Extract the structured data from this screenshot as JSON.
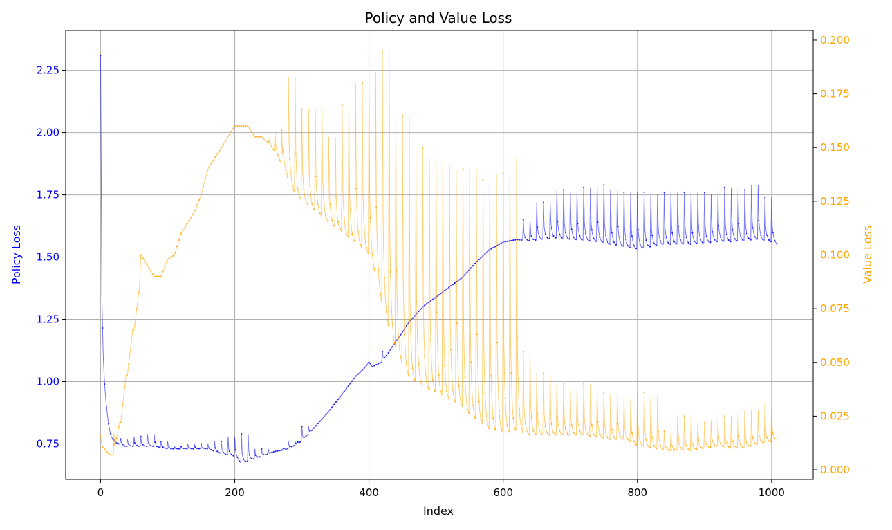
{
  "chart_data": {
    "type": "line",
    "title": "Policy and Value Loss",
    "xlabel": "Index",
    "ylabel_left": "Policy Loss",
    "ylabel_right": "Value Loss",
    "xlim": [
      -52,
      1062
    ],
    "ylim_left": [
      0.607,
      2.41
    ],
    "ylim_right": [
      -0.0045,
      0.2045
    ],
    "xticks": [
      0,
      200,
      400,
      600,
      800,
      1000
    ],
    "yticks_left": [
      0.75,
      1.0,
      1.25,
      1.5,
      1.75,
      2.0,
      2.25
    ],
    "yticks_left_labels": [
      "0.75",
      "1.00",
      "1.25",
      "1.50",
      "1.75",
      "2.00",
      "2.25"
    ],
    "yticks_right": [
      0.0,
      0.025,
      0.05,
      0.075,
      0.1,
      0.125,
      0.15,
      0.175,
      0.2
    ],
    "yticks_right_labels": [
      "0.000",
      "0.025",
      "0.050",
      "0.075",
      "0.100",
      "0.125",
      "0.150",
      "0.175",
      "0.200"
    ],
    "grid": true,
    "colors": {
      "policy": "#0000ff",
      "value": "#ffa500",
      "grid": "#b0b0b0",
      "axis": "#000000"
    },
    "series": [
      {
        "name": "Policy Loss",
        "axis": "left",
        "color": "#0000ff",
        "x": [
          0,
          2,
          4,
          6,
          8,
          10,
          12,
          14,
          16,
          18,
          20,
          25,
          30,
          35,
          40,
          50,
          60,
          70,
          80,
          90,
          100,
          120,
          140,
          160,
          180,
          200,
          210,
          220,
          230,
          240,
          250,
          260,
          280,
          300,
          320,
          340,
          360,
          380,
          395,
          400,
          405,
          420,
          440,
          460,
          480,
          500,
          520,
          540,
          560,
          580,
          600,
          620,
          640,
          660,
          680,
          700,
          720,
          740,
          760,
          780,
          800,
          820,
          840,
          860,
          880,
          900,
          920,
          940,
          960,
          980,
          1000,
          1008
        ],
        "peaks": [
          0.77,
          0.78,
          0.79,
          0.76,
          0.74,
          0.75,
          0.75,
          0.76,
          0.78,
          0.79,
          0.73,
          0.72,
          0.76,
          0.82,
          0.79,
          0.8,
          0.83,
          0.92,
          1.02,
          1.12,
          1.17,
          1.22,
          1.26,
          1.25,
          1.26,
          1.24,
          1.36,
          1.45,
          1.55,
          1.65,
          1.72,
          1.77,
          1.76,
          1.78,
          1.79,
          1.77,
          1.76,
          1.76,
          1.75,
          1.76,
          1.76,
          1.76,
          1.75,
          1.78,
          1.77,
          1.79,
          1.74
        ],
        "y": [
          2.31,
          1.33,
          1.1,
          0.99,
          0.92,
          0.87,
          0.83,
          0.8,
          0.78,
          0.77,
          0.76,
          0.75,
          0.75,
          0.74,
          0.74,
          0.74,
          0.74,
          0.74,
          0.74,
          0.735,
          0.73,
          0.73,
          0.73,
          0.73,
          0.71,
          0.7,
          0.67,
          0.68,
          0.69,
          0.7,
          0.71,
          0.72,
          0.73,
          0.76,
          0.82,
          0.88,
          0.95,
          1.02,
          1.06,
          1.08,
          1.06,
          1.08,
          1.16,
          1.24,
          1.3,
          1.34,
          1.38,
          1.42,
          1.48,
          1.53,
          1.56,
          1.57,
          1.565,
          1.57,
          1.575,
          1.57,
          1.565,
          1.56,
          1.55,
          1.54,
          1.53,
          1.54,
          1.55,
          1.55,
          1.55,
          1.555,
          1.56,
          1.56,
          1.565,
          1.57,
          1.56,
          1.55
        ]
      },
      {
        "name": "Value Loss",
        "axis": "right",
        "color": "#ffa500",
        "x": [
          0,
          2,
          5,
          10,
          15,
          20,
          28,
          30,
          38,
          40,
          48,
          50,
          58,
          60,
          70,
          80,
          90,
          100,
          110,
          120,
          130,
          140,
          150,
          160,
          170,
          180,
          190,
          200,
          210,
          220,
          230,
          240,
          250,
          260,
          270,
          280,
          290,
          300,
          320,
          340,
          360,
          380,
          398,
          400,
          410,
          420,
          430,
          440,
          450,
          460,
          480,
          500,
          520,
          540,
          560,
          580,
          600,
          620,
          640,
          660,
          680,
          700,
          720,
          740,
          760,
          780,
          790,
          800,
          820,
          840,
          860,
          880,
          900,
          920,
          940,
          960,
          980,
          1000,
          1008
        ],
        "peaks": [
          0.017,
          0.027,
          0.044,
          0.063,
          0.088,
          0.112,
          0.128,
          0.12,
          0.125,
          0.135,
          0.145,
          0.158,
          0.183,
          0.168,
          0.168,
          0.155,
          0.17,
          0.18,
          0.185,
          0.195,
          0.165,
          0.15,
          0.145,
          0.142,
          0.14,
          0.14,
          0.135,
          0.138,
          0.145,
          0.055,
          0.045,
          0.04,
          0.038,
          0.04,
          0.036,
          0.035,
          0.033,
          0.036,
          0.034,
          0.018,
          0.025,
          0.022,
          0.023,
          0.025,
          0.027,
          0.028,
          0.03,
          0.035
        ],
        "y": [
          0.016,
          0.011,
          0.01,
          0.008,
          0.007,
          0.007,
          0.022,
          0.022,
          0.044,
          0.044,
          0.065,
          0.065,
          0.085,
          0.1,
          0.095,
          0.09,
          0.09,
          0.098,
          0.1,
          0.11,
          0.115,
          0.12,
          0.128,
          0.14,
          0.145,
          0.15,
          0.155,
          0.16,
          0.16,
          0.16,
          0.155,
          0.155,
          0.152,
          0.148,
          0.142,
          0.135,
          0.128,
          0.125,
          0.12,
          0.115,
          0.11,
          0.105,
          0.1,
          0.1,
          0.09,
          0.075,
          0.065,
          0.055,
          0.048,
          0.042,
          0.038,
          0.035,
          0.032,
          0.028,
          0.022,
          0.018,
          0.016,
          0.017,
          0.016,
          0.016,
          0.016,
          0.016,
          0.016,
          0.015,
          0.014,
          0.014,
          0.013,
          0.011,
          0.01,
          0.009,
          0.009,
          0.009,
          0.01,
          0.011,
          0.01,
          0.01,
          0.012,
          0.013,
          0.014
        ]
      }
    ]
  }
}
